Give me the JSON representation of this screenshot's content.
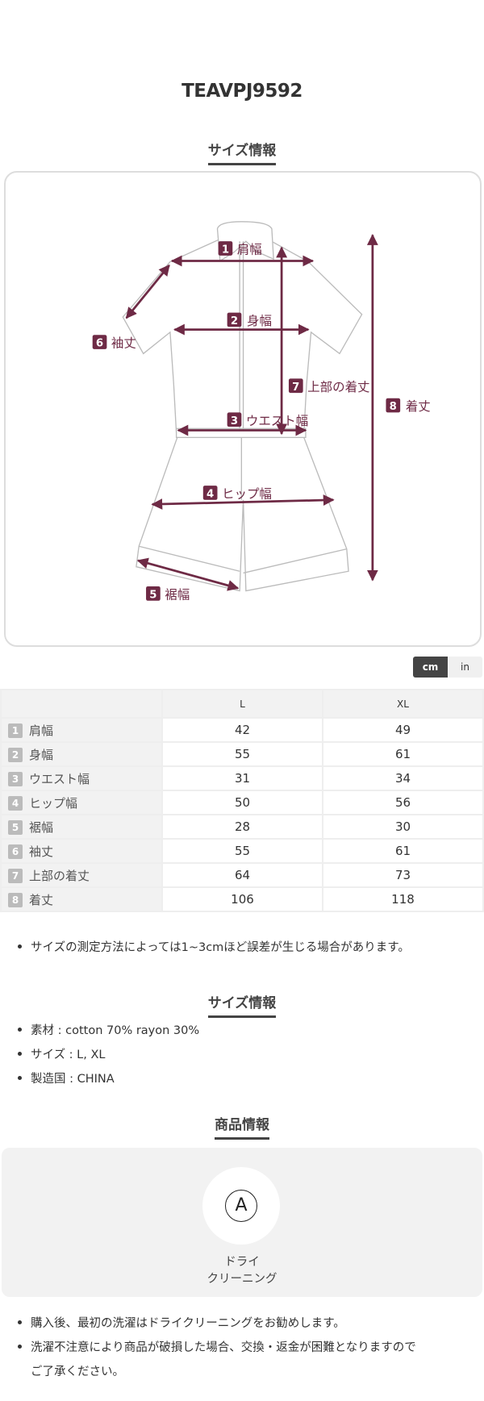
{
  "product_code": "TEAVPJ9592",
  "size_section_title": "サイズ情報",
  "diagram": {
    "accent_color": "#6e2a45",
    "labels": [
      {
        "num": "1",
        "text": "肩幅"
      },
      {
        "num": "2",
        "text": "身幅"
      },
      {
        "num": "3",
        "text": "ウエスト幅"
      },
      {
        "num": "4",
        "text": "ヒップ幅"
      },
      {
        "num": "5",
        "text": "裾幅"
      },
      {
        "num": "6",
        "text": "袖丈"
      },
      {
        "num": "7",
        "text": "上部の着丈"
      },
      {
        "num": "8",
        "text": "着丈"
      }
    ]
  },
  "unit_toggle": {
    "cm": "cm",
    "in": "in",
    "selected": "cm"
  },
  "size_table": {
    "columns": [
      "L",
      "XL"
    ],
    "rows": [
      {
        "num": "1",
        "label": "肩幅",
        "values": [
          "42",
          "49"
        ]
      },
      {
        "num": "2",
        "label": "身幅",
        "values": [
          "55",
          "61"
        ]
      },
      {
        "num": "3",
        "label": "ウエスト幅",
        "values": [
          "31",
          "34"
        ]
      },
      {
        "num": "4",
        "label": "ヒップ幅",
        "values": [
          "50",
          "56"
        ]
      },
      {
        "num": "5",
        "label": "裾幅",
        "values": [
          "28",
          "30"
        ]
      },
      {
        "num": "6",
        "label": "袖丈",
        "values": [
          "55",
          "61"
        ]
      },
      {
        "num": "7",
        "label": "上部の着丈",
        "values": [
          "64",
          "73"
        ]
      },
      {
        "num": "8",
        "label": "着丈",
        "values": [
          "106",
          "118"
        ]
      }
    ]
  },
  "measure_note": "サイズの測定方法によっては1~3cmほど誤差が生じる場合があります。",
  "size_info": {
    "title": "サイズ情報",
    "items": [
      "素材 : cotton 70% rayon 30%",
      "サイズ : L, XL",
      "製造国 : CHINA"
    ]
  },
  "product_info": {
    "title": "商品情報",
    "care_icon": "dry-clean-A-icon",
    "care_symbol": "A",
    "care_label_line1": "ドライ",
    "care_label_line2": "クリーニング",
    "notes": [
      "購入後、最初の洗濯はドライクリーニングをお勧めします。",
      "洗濯不注意により商品が破損した場合、交換・返金が困難となりますので",
      "ご了承ください。"
    ]
  }
}
